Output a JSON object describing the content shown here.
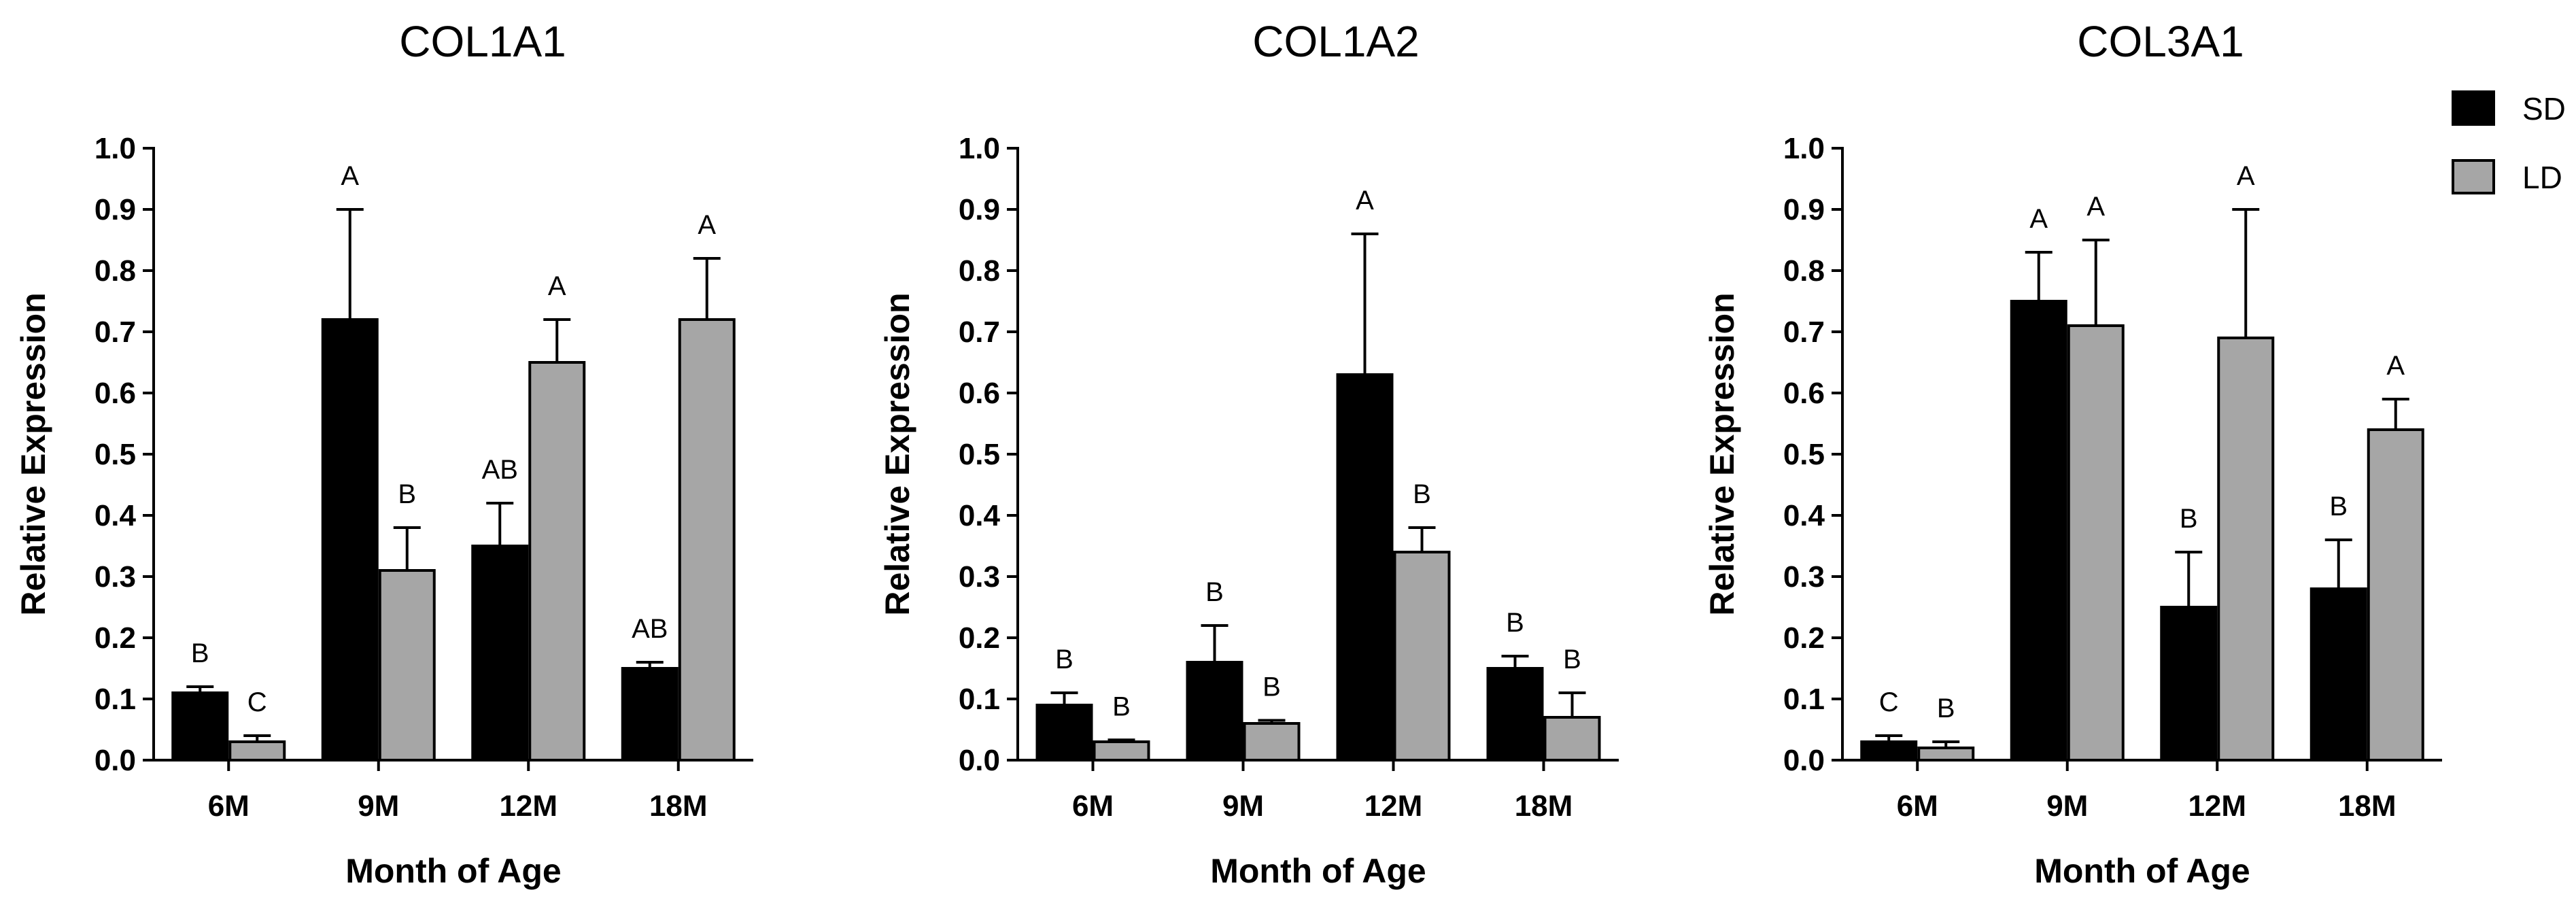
{
  "figure": {
    "legend": [
      {
        "name": "SD",
        "color": "#000000"
      },
      {
        "name": "LD",
        "color": "#a6a6a6"
      }
    ]
  },
  "chart_data": [
    {
      "type": "bar",
      "title": "COL1A1",
      "xlabel": "Month of Age",
      "ylabel": "Relative Expression",
      "ylim": [
        0,
        1.0
      ],
      "yticks": [
        "0.0",
        "0.1",
        "0.2",
        "0.3",
        "0.4",
        "0.5",
        "0.6",
        "0.7",
        "0.8",
        "0.9",
        "1.0"
      ],
      "categories": [
        "6M",
        "9M",
        "12M",
        "18M"
      ],
      "series": [
        {
          "name": "SD",
          "color": "#000000",
          "values": [
            0.11,
            0.72,
            0.35,
            0.15
          ],
          "errors": [
            0.01,
            0.18,
            0.07,
            0.01
          ],
          "labels": [
            "B",
            "A",
            "AB",
            "AB"
          ]
        },
        {
          "name": "LD",
          "color": "#a6a6a6",
          "values": [
            0.03,
            0.31,
            0.65,
            0.72
          ],
          "errors": [
            0.01,
            0.07,
            0.07,
            0.1
          ],
          "labels": [
            "C",
            "B",
            "A",
            "A"
          ]
        }
      ]
    },
    {
      "type": "bar",
      "title": "COL1A2",
      "xlabel": "Month of Age",
      "ylabel": "Relative Expression",
      "ylim": [
        0,
        1.0
      ],
      "yticks": [
        "0.0",
        "0.1",
        "0.2",
        "0.3",
        "0.4",
        "0.5",
        "0.6",
        "0.7",
        "0.8",
        "0.9",
        "1.0"
      ],
      "categories": [
        "6M",
        "9M",
        "12M",
        "18M"
      ],
      "series": [
        {
          "name": "SD",
          "color": "#000000",
          "values": [
            0.09,
            0.16,
            0.63,
            0.15
          ],
          "errors": [
            0.02,
            0.06,
            0.23,
            0.02
          ],
          "labels": [
            "B",
            "B",
            "A",
            "B"
          ]
        },
        {
          "name": "LD",
          "color": "#a6a6a6",
          "values": [
            0.03,
            0.06,
            0.34,
            0.07
          ],
          "errors": [
            0.003,
            0.005,
            0.04,
            0.04
          ],
          "labels": [
            "B",
            "B",
            "B",
            "B"
          ]
        }
      ]
    },
    {
      "type": "bar",
      "title": "COL3A1",
      "xlabel": "Month of Age",
      "ylabel": "Relative Expression",
      "ylim": [
        0,
        1.0
      ],
      "yticks": [
        "0.0",
        "0.1",
        "0.2",
        "0.3",
        "0.4",
        "0.5",
        "0.6",
        "0.7",
        "0.8",
        "0.9",
        "1.0"
      ],
      "categories": [
        "6M",
        "9M",
        "12M",
        "18M"
      ],
      "series": [
        {
          "name": "SD",
          "color": "#000000",
          "values": [
            0.03,
            0.75,
            0.25,
            0.28
          ],
          "errors": [
            0.01,
            0.08,
            0.09,
            0.08
          ],
          "labels": [
            "C",
            "A",
            "B",
            "B"
          ]
        },
        {
          "name": "LD",
          "color": "#a6a6a6",
          "values": [
            0.02,
            0.71,
            0.69,
            0.54
          ],
          "errors": [
            0.01,
            0.14,
            0.21,
            0.05
          ],
          "labels": [
            "B",
            "A",
            "A",
            "A"
          ]
        }
      ]
    }
  ]
}
